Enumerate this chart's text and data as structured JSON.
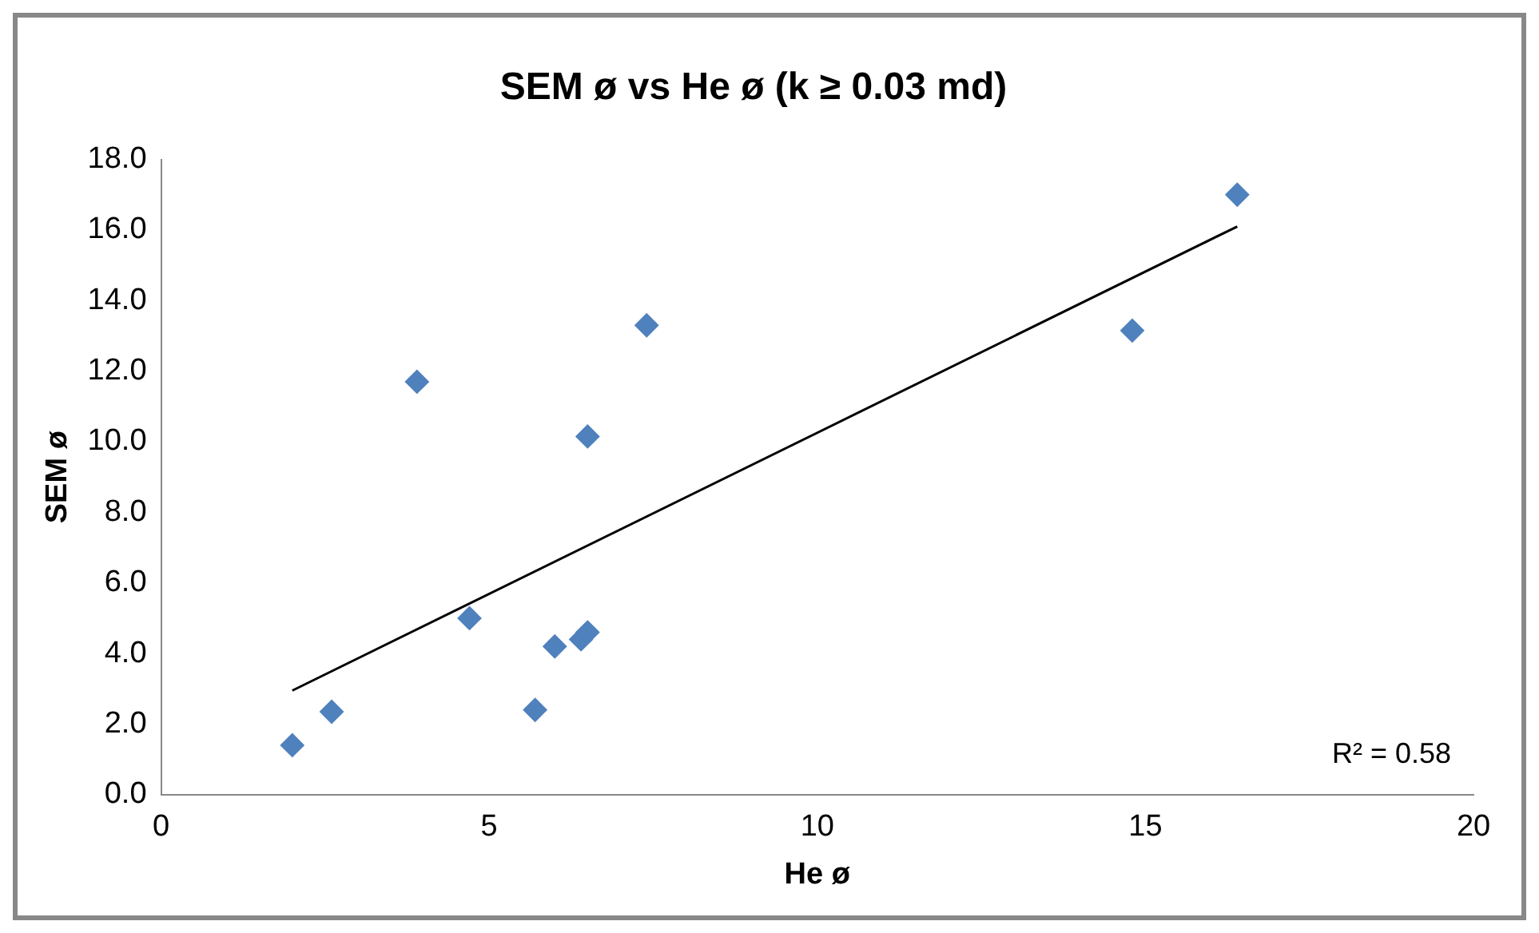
{
  "chart_data": {
    "type": "scatter",
    "title": "SEM ø vs He ø (k ≥ 0.03 md)",
    "xlabel": "He ø",
    "ylabel": "SEM ø",
    "grid": false,
    "legend": false,
    "series": [
      {
        "type": "scatter",
        "marker": "diamond",
        "color": "#4f81bd",
        "x": [
          2.0,
          2.6,
          3.9,
          4.7,
          5.7,
          6.0,
          6.4,
          6.5,
          6.5,
          7.4,
          14.8,
          16.4
        ],
        "values": [
          1.4,
          2.35,
          11.7,
          5.0,
          2.4,
          4.2,
          4.4,
          4.6,
          10.15,
          13.3,
          13.15,
          17.0
        ]
      },
      {
        "type": "line",
        "marker": "none",
        "color": "#000000",
        "x": [
          2.0,
          16.4
        ],
        "values": [
          2.95,
          16.1
        ]
      }
    ],
    "xlim": [
      0,
      20
    ],
    "xticks": [
      0,
      5,
      10,
      15,
      20
    ],
    "ylim": [
      0,
      18
    ],
    "yticks": [
      {
        "value": 0,
        "label": "0.0"
      },
      {
        "value": 2,
        "label": "2.0"
      },
      {
        "value": 4,
        "label": "4.0"
      },
      {
        "value": 6,
        "label": "6.0"
      },
      {
        "value": 8,
        "label": "8.0"
      },
      {
        "value": 10,
        "label": "10.0"
      },
      {
        "value": 12,
        "label": "12.0"
      },
      {
        "value": 14,
        "label": "14.0"
      },
      {
        "value": 16,
        "label": "16.0"
      },
      {
        "value": 18,
        "label": "18.0"
      }
    ],
    "annotations": [
      "R² = 0.58"
    ]
  }
}
